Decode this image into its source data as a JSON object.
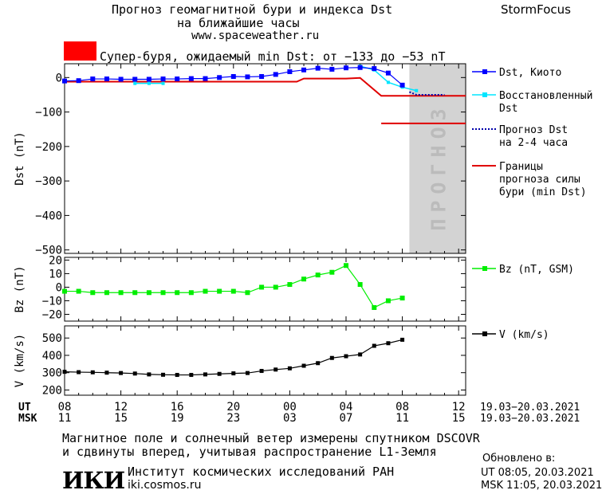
{
  "header": {
    "title_line1": "Прогноз геомагнитной бури и индекса Dst",
    "title_line2": "на ближайшие часы",
    "site": "www.spaceweather.ru",
    "brand": "StormFocus"
  },
  "storm_banner": {
    "text": "Супер-буря, ожидаемый min Dst: от −133 до −53 nT",
    "color": "#ff0000"
  },
  "footer": {
    "line1": "Магнитное поле и солнечный ветер измерены спутником DSCOVR",
    "line2": "и сдвинуты вперед, учитывая распространение L1-Земля",
    "logo_text": "ИКИ",
    "institute": "Институт космических исследований РАН",
    "institute_site": "iki.cosmos.ru",
    "updated_label": "Обновлено в:",
    "updated_ut": "UT   08:05, 20.03.2021",
    "updated_msk": "MSK 11:05, 20.03.2021"
  },
  "colors": {
    "dst": "#0000ff",
    "restored": "#00e5ff",
    "forecast": "#0000aa",
    "bounds": "#e00000",
    "bz": "#00ee00",
    "v": "#000000",
    "forecast_zone": "#d3d3d3",
    "forecast_zone_text": "#bbbbbb"
  },
  "chart_data": [
    {
      "type": "line",
      "ylabel": "Dst (nT)",
      "ylim": [
        -510,
        40
      ],
      "yticks": [
        0,
        -100,
        -200,
        -300,
        -400,
        -500
      ],
      "ytick_labels": [
        "0",
        "−100",
        "−200",
        "−300",
        "−400",
        "−500"
      ],
      "xlim": [
        0,
        28.5
      ],
      "forecast_zone": {
        "x_range": [
          24.5,
          28.5
        ],
        "label": "ПРОГНОЗ"
      },
      "series": [
        {
          "name": "Dst, Киото",
          "x": [
            0,
            1,
            2,
            3,
            4,
            5,
            6,
            7,
            8,
            9,
            10,
            11,
            12,
            13,
            14,
            15,
            16,
            17,
            18,
            19,
            20,
            21,
            22,
            23,
            24
          ],
          "values": [
            -10,
            -9,
            -4,
            -4,
            -5,
            -5,
            -5,
            -4,
            -4,
            -3,
            -3,
            0,
            3,
            2,
            3,
            9,
            17,
            22,
            27,
            24,
            28,
            29,
            26,
            13,
            -22
          ]
        },
        {
          "name": "Восстановленный Dst",
          "x": [
            5,
            6,
            7,
            21,
            22,
            23,
            24,
            25
          ],
          "values": [
            -17,
            -17,
            -17,
            33,
            22,
            -14,
            -28,
            -38
          ]
        },
        {
          "name": "Прогноз Dst на 2-4 часа",
          "x": [
            24.5,
            25,
            26,
            27
          ],
          "values": [
            -42,
            -50,
            -50,
            -50
          ]
        },
        {
          "name": "Границы прогноза силы бури (min Dst)",
          "segments": [
            {
              "x": [
                0,
                16.5,
                17,
                20,
                21,
                22.5,
                28.5
              ],
              "values": [
                -12,
                -12,
                -3,
                -3,
                -1,
                -53,
                -53
              ]
            },
            {
              "x": [
                22.5,
                28.5
              ],
              "values": [
                -133,
                -133
              ]
            }
          ]
        }
      ]
    },
    {
      "type": "line",
      "ylabel": "Bz (nT)",
      "ylim": [
        -25,
        22
      ],
      "yticks": [
        20,
        10,
        0,
        -10,
        -20
      ],
      "ytick_labels": [
        "20",
        "10",
        "0",
        "−10",
        "−20"
      ],
      "xlim": [
        0,
        28.5
      ],
      "series": [
        {
          "name": "Bz (nT, GSM)",
          "x": [
            0,
            1,
            2,
            3,
            4,
            5,
            6,
            7,
            8,
            9,
            10,
            11,
            12,
            13,
            14,
            15,
            16,
            17,
            18,
            19,
            20,
            21,
            22,
            23,
            24,
            25
          ],
          "values": [
            -3,
            -3,
            -4,
            -4,
            -4,
            -4,
            -4,
            -4,
            -4,
            -4,
            -3,
            -3,
            -3,
            -4,
            0,
            0,
            2,
            6,
            9,
            11,
            16,
            2,
            -15,
            -10,
            -8,
            null
          ]
        }
      ]
    },
    {
      "type": "line",
      "ylabel": "V (km/s)",
      "ylim": [
        170,
        570
      ],
      "yticks": [
        500,
        400,
        300,
        200
      ],
      "ytick_labels": [
        "500",
        "400",
        "300",
        "200"
      ],
      "xlim": [
        0,
        28.5
      ],
      "series": [
        {
          "name": "V (km/s)",
          "x": [
            0,
            1,
            2,
            3,
            4,
            5,
            6,
            7,
            8,
            9,
            10,
            11,
            12,
            13,
            14,
            15,
            16,
            17,
            18,
            19,
            20,
            21,
            22,
            23,
            24
          ],
          "values": [
            305,
            303,
            302,
            300,
            298,
            295,
            290,
            288,
            287,
            287,
            290,
            293,
            296,
            298,
            310,
            318,
            325,
            340,
            355,
            385,
            395,
            405,
            455,
            470,
            490
          ]
        }
      ]
    }
  ],
  "x_axis": {
    "ut_label": "UT",
    "msk_label": "MSK",
    "ut_ticks": [
      "08",
      "12",
      "16",
      "20",
      "00",
      "04",
      "08",
      "12"
    ],
    "msk_ticks": [
      "11",
      "15",
      "19",
      "23",
      "03",
      "07",
      "11",
      "15"
    ],
    "ut_range": "19.03−20.03.2021",
    "msk_range": "19.03−20.03.2021"
  }
}
